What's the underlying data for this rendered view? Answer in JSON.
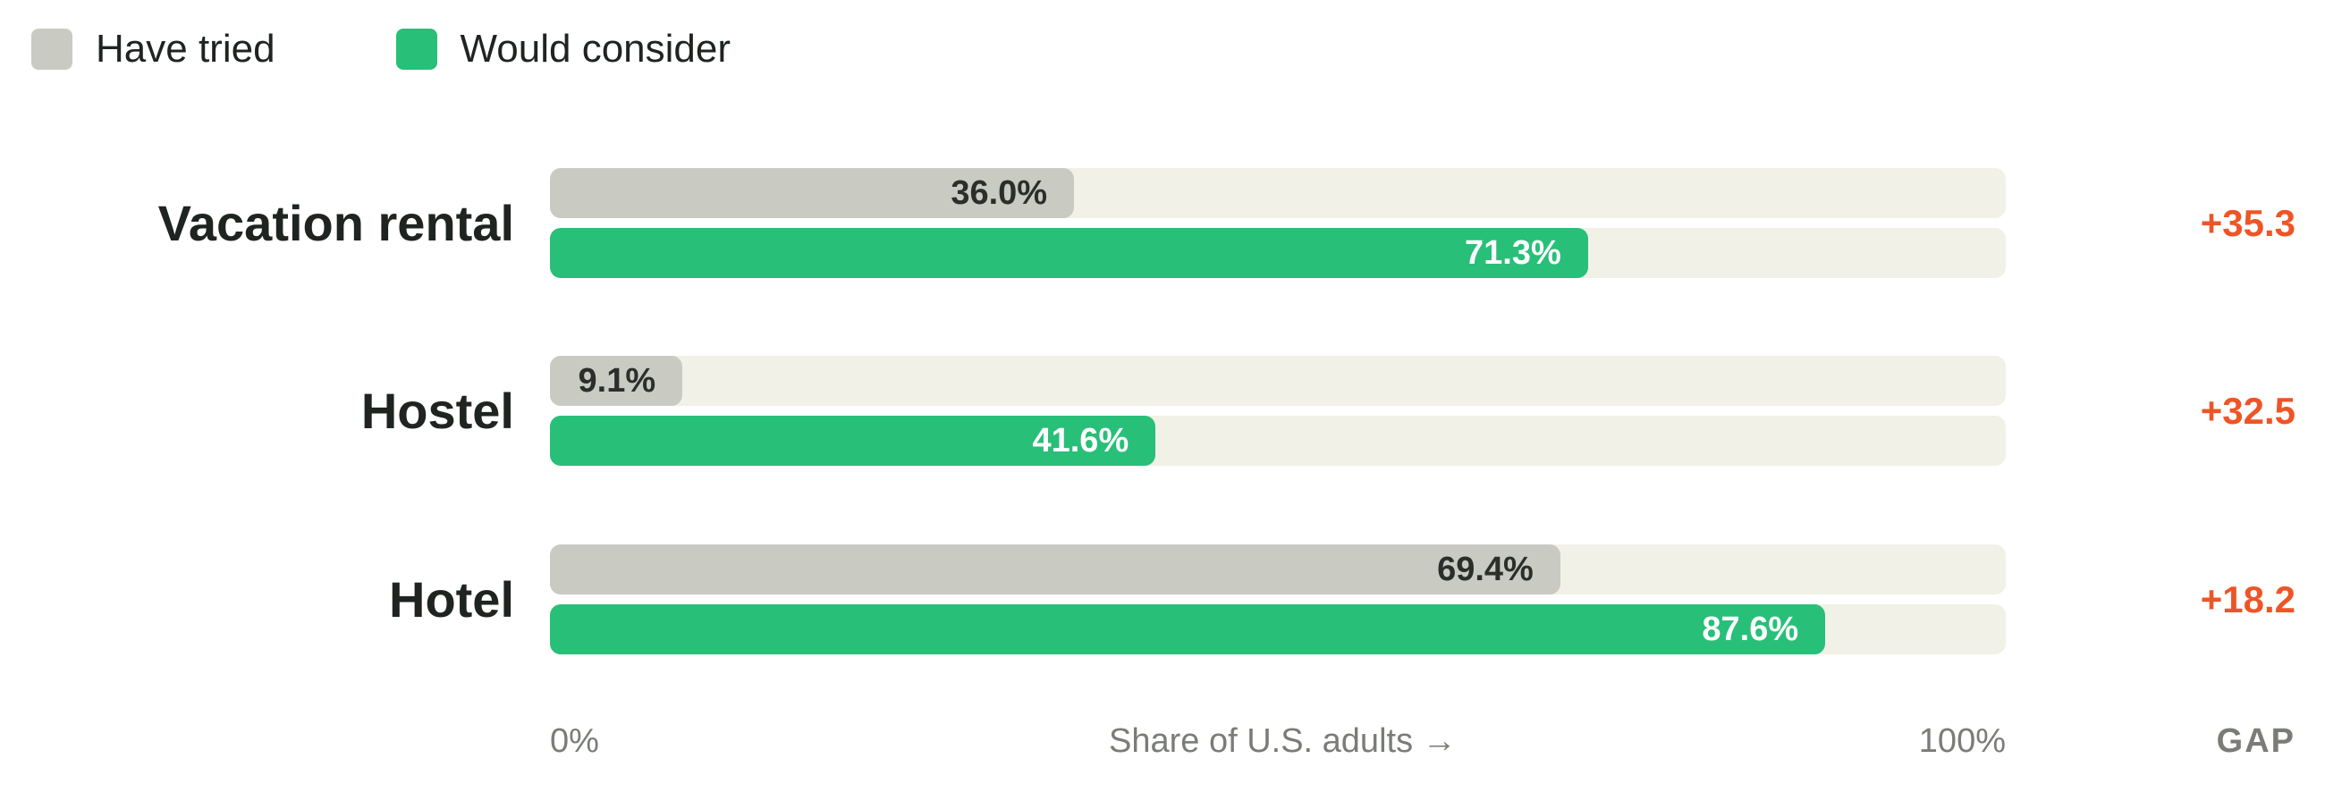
{
  "legend": {
    "tried_label": "Have tried",
    "consider_label": "Would consider"
  },
  "colors": {
    "tried": "#c9cbc3",
    "consider": "#28bf79",
    "track": "#f1f1e7",
    "gap": "#ee5526"
  },
  "chart_data": {
    "type": "bar",
    "orientation": "horizontal",
    "categories": [
      "Vacation rental",
      "Hostel",
      "Hotel"
    ],
    "series": [
      {
        "name": "Have tried",
        "values": [
          36.0,
          9.1,
          69.4
        ],
        "labels": [
          "36.0%",
          "9.1%",
          "69.4%"
        ]
      },
      {
        "name": "Would consider",
        "values": [
          71.3,
          41.6,
          87.6
        ],
        "labels": [
          "71.3%",
          "41.6%",
          "87.6%"
        ]
      }
    ],
    "gap": [
      "+35.3",
      "+32.5",
      "+18.2"
    ],
    "xlim": [
      0,
      100
    ],
    "x_axis": {
      "min_label": "0%",
      "max_label": "100%",
      "title": "Share of U.S. adults →"
    },
    "gap_header": "GAP",
    "legend_position": "top-left",
    "grid": false
  }
}
